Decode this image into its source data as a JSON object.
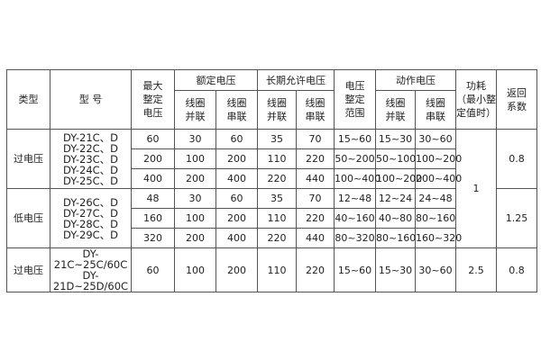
{
  "header": {
    "type": "类型",
    "model": "型 号",
    "max_setting": [
      "最大",
      "整定",
      "电压"
    ],
    "rated": "额定电压",
    "allowed": "长期允许电压",
    "range": [
      "电压",
      "整定",
      "范围"
    ],
    "action": "动作电压",
    "power": [
      "功耗",
      "（最小整",
      "定值时）"
    ],
    "return": [
      "返回",
      "系数"
    ],
    "parallel": [
      "线圈",
      "并联"
    ],
    "series": [
      "线圈",
      "串联"
    ]
  },
  "groups": [
    {
      "type": "过电压",
      "models": [
        "DY-21C、D",
        "DY-22C、D",
        "DY-23C、D",
        "DY-24C、D",
        "DY-25C、D"
      ],
      "return": "0.8",
      "rows": [
        [
          "60",
          "30",
          "60",
          "35",
          "70",
          "15~60",
          "15~30",
          "30~60"
        ],
        [
          "200",
          "100",
          "200",
          "110",
          "220",
          "50~200",
          "50~100",
          "100~200"
        ],
        [
          "400",
          "200",
          "400",
          "220",
          "440",
          "100~400",
          "100~200",
          "200~400"
        ]
      ]
    },
    {
      "type": "低电压",
      "models": [
        "DY-26C、D",
        "DY-27C、D",
        "DY-28C、D",
        "DY-29C、D"
      ],
      "return": "1.25",
      "rows": [
        [
          "48",
          "30",
          "60",
          "35",
          "70",
          "12~48",
          "12~24",
          "24~48"
        ],
        [
          "160",
          "100",
          "200",
          "110",
          "220",
          "40~160",
          "40~80",
          "80~160"
        ],
        [
          "320",
          "200",
          "400",
          "220",
          "440",
          "80~320",
          "80~160",
          "160~320"
        ]
      ]
    },
    {
      "type": "过电压",
      "models": [
        "DY-21C~25C/60C",
        "DY-21D~25D/60C"
      ],
      "return": "0.8",
      "power": "2.5",
      "rows": [
        [
          "60",
          "100",
          "200",
          "110",
          "220",
          "15~60",
          "15~30",
          "30~60"
        ]
      ]
    }
  ],
  "power_shared": "1"
}
